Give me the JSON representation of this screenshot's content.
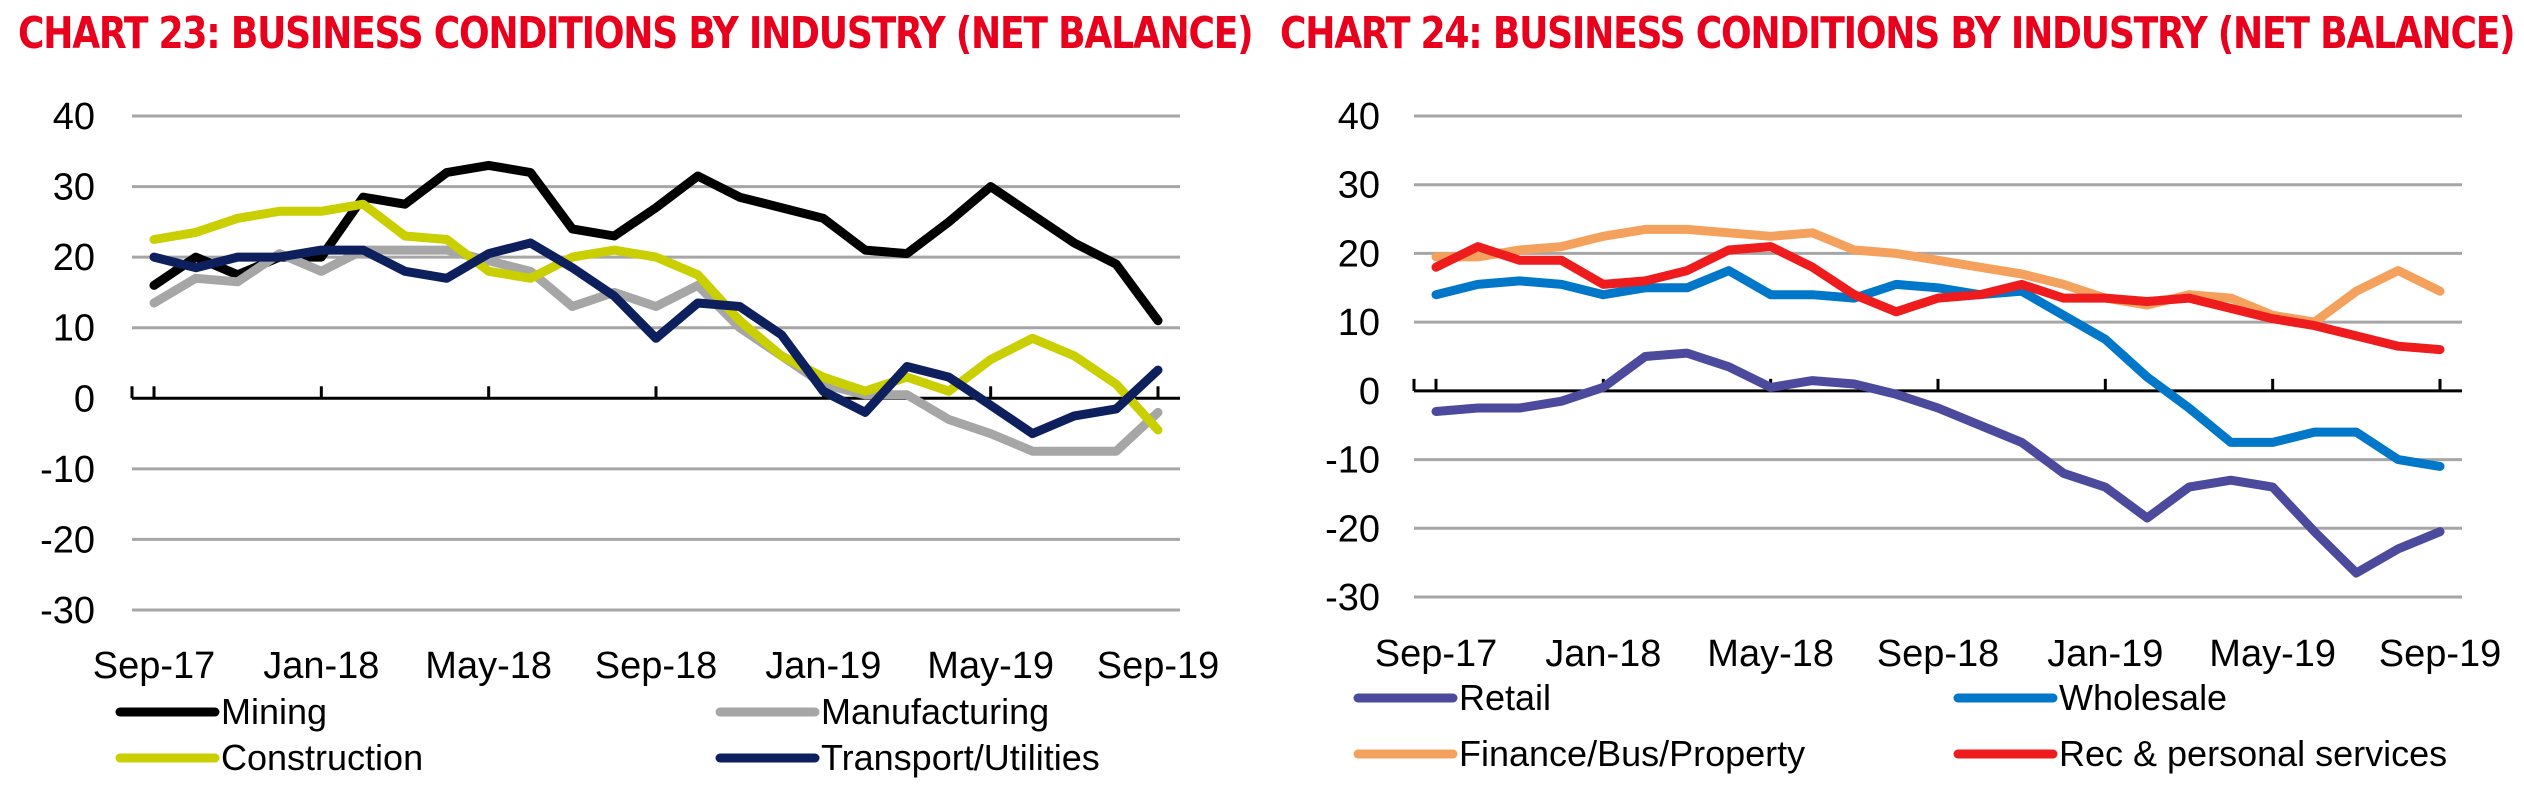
{
  "colors": {
    "title": "#e8001c",
    "grid": "#a6a6a6",
    "axis": "#000000"
  },
  "chart_data": [
    {
      "type": "line",
      "title": "CHART 23: BUSINESS CONDITIONS BY INDUSTRY (NET BALANCE)",
      "xlabel": "",
      "ylabel": "",
      "ylim": [
        -30,
        40
      ],
      "yticks": [
        40,
        30,
        20,
        10,
        0,
        -10,
        -20,
        -30
      ],
      "x_tick_labels": [
        "Sep-17",
        "Jan-18",
        "May-18",
        "Sep-18",
        "Jan-19",
        "May-19",
        "Sep-19"
      ],
      "legend_position": "bottom",
      "series": [
        {
          "name": "Mining",
          "color": "#000000",
          "values": [
            16,
            20,
            17.5,
            20,
            20,
            28.5,
            27.5,
            32,
            33,
            32,
            24,
            23,
            27,
            31.5,
            28.5,
            27,
            25.5,
            21,
            20.5,
            25,
            30,
            26,
            22,
            19,
            11
          ]
        },
        {
          "name": "Manufacturing",
          "color": "#a6a6a6",
          "values": [
            13.5,
            17,
            16.5,
            20.5,
            18,
            21,
            21,
            21,
            19.5,
            18,
            13,
            15,
            13,
            16,
            10,
            6,
            2,
            0.5,
            0.5,
            -3,
            -5,
            -7.5,
            -7.5,
            -7.5,
            -2
          ]
        },
        {
          "name": "Construction",
          "color": "#c9cf00",
          "values": [
            22.5,
            23.5,
            25.5,
            26.5,
            26.5,
            27.5,
            23,
            22.5,
            18,
            17,
            20,
            21,
            20,
            17.5,
            11,
            6,
            3,
            1,
            3,
            1,
            5.5,
            8.5,
            6,
            2,
            -4.5
          ]
        },
        {
          "name": "Transport/Utilities",
          "color": "#0d1f5c",
          "values": [
            20,
            18.5,
            20,
            20,
            21,
            21,
            18,
            17,
            20.5,
            22,
            18.5,
            14.5,
            8.5,
            13.5,
            13,
            9,
            1,
            -2,
            4.5,
            3,
            -1,
            -5,
            -2.5,
            -1.5,
            4
          ]
        }
      ]
    },
    {
      "type": "line",
      "title": "CHART 24: BUSINESS CONDITIONS BY INDUSTRY (NET BALANCE)",
      "xlabel": "",
      "ylabel": "",
      "ylim": [
        -30,
        40
      ],
      "yticks": [
        40,
        30,
        20,
        10,
        0,
        -10,
        -20,
        -30
      ],
      "x_tick_labels": [
        "Sep-17",
        "Jan-18",
        "May-18",
        "Sep-18",
        "Jan-19",
        "May-19",
        "Sep-19"
      ],
      "legend_position": "bottom",
      "series": [
        {
          "name": "Retail",
          "color": "#4b4a9c",
          "values": [
            -3,
            -2.5,
            -2.5,
            -1.5,
            0.5,
            5,
            5.5,
            3.5,
            0.5,
            1.5,
            1,
            -0.5,
            -2.5,
            -5,
            -7.5,
            -12,
            -14,
            -18.5,
            -14,
            -13,
            -14,
            -20.5,
            -26.5,
            -23,
            -20.5
          ]
        },
        {
          "name": "Wholesale",
          "color": "#0077c8",
          "values": [
            14,
            15.5,
            16,
            15.5,
            14,
            15,
            15,
            17.5,
            14,
            14,
            13.5,
            15.5,
            15,
            14,
            14.5,
            11,
            7.5,
            2,
            -2.5,
            -7.5,
            -7.5,
            -6,
            -6,
            -10,
            -11
          ]
        },
        {
          "name": "Finance/Bus/Property",
          "color": "#f4a15d",
          "values": [
            19.5,
            19.5,
            20.5,
            21,
            22.5,
            23.5,
            23.5,
            23,
            22.5,
            23,
            20.5,
            20,
            19,
            18,
            17,
            15.5,
            13.5,
            12.5,
            14,
            13.5,
            11,
            10,
            14.5,
            17.5,
            14.5
          ]
        },
        {
          "name": "Rec & personal services",
          "color": "#ee1c1c",
          "values": [
            18,
            21,
            19,
            19,
            15.5,
            16,
            17.5,
            20.5,
            21,
            18,
            14,
            11.5,
            13.5,
            14,
            15.5,
            13.5,
            13.5,
            13,
            13.5,
            12,
            10.5,
            9.5,
            8,
            6.5,
            6
          ]
        }
      ]
    }
  ]
}
